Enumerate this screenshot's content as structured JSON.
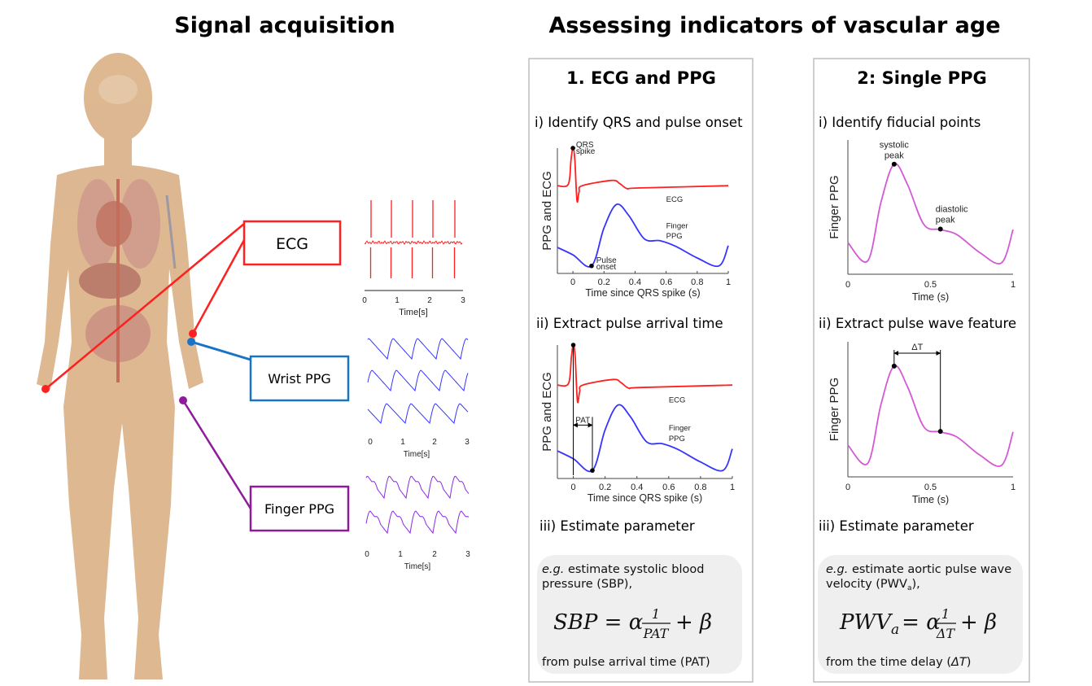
{
  "titles": {
    "left": "Signal acquisition",
    "right": "Assessing indicators of vascular age"
  },
  "colors": {
    "ecg": "#ff2020",
    "wrist": "#1a73c4",
    "finger": "#8e1a9c",
    "ppg_blue": "#3535ff",
    "ppg_purple": "#8a2be2",
    "ppg_magenta": "#d45ad4",
    "body": "#d7ab7e",
    "panel_border": "#bdbdbd",
    "box_fill": "#efefef"
  },
  "acquisition": {
    "labels": {
      "ecg": "ECG",
      "wrist": "Wrist PPG",
      "finger": "Finger PPG"
    },
    "ecg_axis": {
      "ticks": [
        "0",
        "1",
        "2",
        "3"
      ],
      "xlabel": "Time[s]"
    },
    "wrist_axis": {
      "ticks": [
        "0",
        "1",
        "2",
        "3"
      ],
      "xlabel": "Time[s]"
    },
    "finger_axis": {
      "ticks": [
        "0",
        "1",
        "2",
        "3"
      ],
      "xlabel": "Time[s]"
    }
  },
  "panel1": {
    "heading": "1. ECG and PPG",
    "step1": "i) Identify QRS and pulse onset",
    "step2": "ii) Extract pulse arrival time",
    "step3": "iii) Estimate parameter",
    "plot": {
      "ylabel": "PPG and ECG",
      "xlabel": "Time since QRS spike (s)",
      "ticks": [
        "0",
        "0.2",
        "0.4",
        "0.6",
        "0.8",
        "1"
      ],
      "ecg_label": "ECG",
      "ppg_label_1": "Finger",
      "ppg_label_2": "PPG",
      "qrs_1": "QRS",
      "qrs_2": "spike",
      "onset_1": "Pulse",
      "onset_2": "onset",
      "pat": "PAT"
    },
    "box": {
      "eg": "e.g.",
      "line1": " estimate systolic blood",
      "line2": "pressure (SBP),",
      "eq_lhs": "SBP = α",
      "eq_num": "1",
      "eq_den": "PAT",
      "eq_rhs": "+  β",
      "footer": "from pulse arrival time (PAT)"
    }
  },
  "panel2": {
    "heading": "2: Single PPG",
    "step1": "i) Identify fiducial points",
    "step2": "ii) Extract pulse wave feature",
    "step3": "iii) Estimate parameter",
    "plot": {
      "ylabel": "Finger PPG",
      "xlabel": "Time (s)",
      "ticks": [
        "0",
        "0.5",
        "1"
      ],
      "sys_1": "systolic",
      "sys_2": "peak",
      "dia_1": "diastolic",
      "dia_2": "peak",
      "delta": "ΔT"
    },
    "box": {
      "eg": "e.g.",
      "line1": " estimate aortic pulse wave",
      "line2a": "velocity (PWV",
      "line2sub": "a",
      "line2b": "),",
      "eq_lhs": "PWV",
      "eq_sub": "a",
      "eq_mid": "= α",
      "eq_num": "1",
      "eq_den": "ΔT",
      "eq_rhs": "+  β",
      "footer_a": "from the time delay (",
      "footer_b": "ΔT",
      "footer_c": ")"
    }
  }
}
